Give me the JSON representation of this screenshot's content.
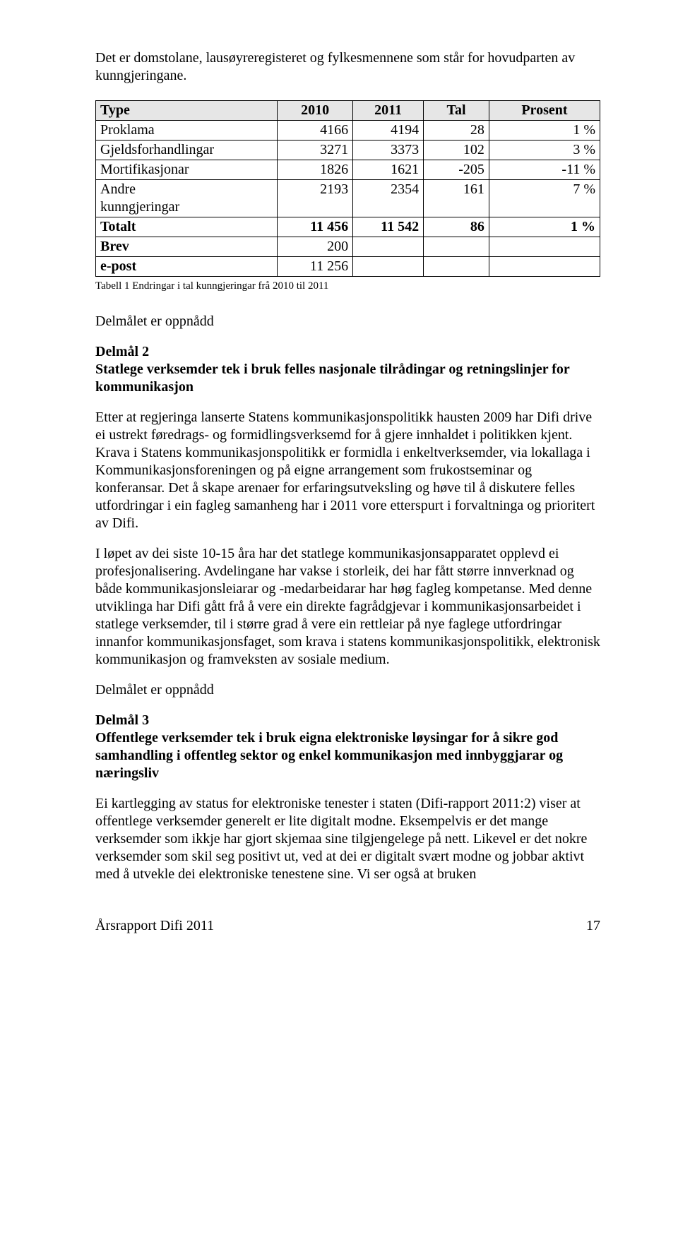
{
  "intro": "Det er domstolane, lausøyreregisteret og fylkesmennene som står for hovudparten av kunngjeringane.",
  "table": {
    "headers": [
      "Type",
      "2010",
      "2011",
      "Tal",
      "Prosent"
    ],
    "rows": [
      {
        "label": "Proklama",
        "y2010": "4166",
        "y2011": "4194",
        "tal": "28",
        "prosent": "1 %",
        "label_bold": false
      },
      {
        "label": "Gjeldsforhandlingar",
        "y2010": "3271",
        "y2011": "3373",
        "tal": "102",
        "prosent": "3 %",
        "label_bold": false
      },
      {
        "label": "Mortifikasjonar",
        "y2010": "1826",
        "y2011": "1621",
        "tal": "-205",
        "prosent": "-11 %",
        "label_bold": false
      },
      {
        "label": "Andre kunngjeringar",
        "y2010": "2193",
        "y2011": "2354",
        "tal": "161",
        "prosent": "7 %",
        "label_bold": false,
        "label_two_lines": true
      },
      {
        "label": "Totalt",
        "y2010": "11 456",
        "y2011": "11 542",
        "tal": "86",
        "prosent": "1 %",
        "label_bold": true,
        "row_bold": true
      },
      {
        "label": "Brev",
        "y2010": "200",
        "y2011": "",
        "tal": "",
        "prosent": "",
        "label_bold": true
      },
      {
        "label": "e-post",
        "y2010": "11 256",
        "y2011": "",
        "tal": "",
        "prosent": "",
        "label_bold": true
      }
    ],
    "col_widths": [
      "36%",
      "15%",
      "14%",
      "13%",
      "22%"
    ]
  },
  "table_caption": "Tabell 1 Endringar i tal kunngjeringar frå 2010 til 2011",
  "delmal1_achieved": "Delmålet er oppnådd",
  "delmal2": {
    "title": "Delmål 2",
    "subtitle": "Statlege verksemder tek i bruk felles nasjonale tilrådingar og retningslinjer for kommunikasjon",
    "p1": "Etter at regjeringa lanserte Statens kommunikasjonspolitikk hausten 2009 har Difi drive ei ustrekt føredrags- og formidlingsverksemd for å gjere innhaldet i politikken kjent. Krava i Statens kommunikasjonspolitikk er formidla i enkeltverksemder, via lokallaga i Kommunikasjonsforeningen og på eigne arrangement som frukostseminar og konferansar. Det å skape arenaer for erfaringsutveksling og høve til å diskutere felles utfordringar i ein fagleg samanheng har i 2011 vore etterspurt i forvaltninga og prioritert av Difi.",
    "p2": "I løpet av dei siste 10-15 åra har det statlege kommunikasjonsapparatet opplevd ei profesjonalisering. Avdelingane har vakse i storleik, dei har fått større innverknad og både kommunikasjonsleiarar og -medarbeidarar har høg fagleg kompetanse. Med denne utviklinga har Difi gått frå å vere ein direkte fagrådgjevar i kommunikasjonsarbeidet i statlege verksemder, til i større grad å vere ein rettleiar på nye faglege utfordringar innanfor kommunikasjonsfaget, som krava i statens kommunikasjonspolitikk, elektronisk kommunikasjon og framveksten av sosiale medium."
  },
  "delmal2_achieved": "Delmålet er oppnådd",
  "delmal3": {
    "title": "Delmål 3",
    "subtitle": "Offentlege verksemder tek i bruk eigna elektroniske løysingar for å sikre god samhandling i offentleg sektor og enkel kommunikasjon med innbyggjarar og næringsliv",
    "p1": "Ei kartlegging av status for elektroniske tenester i staten (Difi-rapport 2011:2) viser at offentlege verksemder generelt er lite digitalt modne. Eksempelvis er det mange verksemder som ikkje har gjort skjemaa sine tilgjengelege på nett. Likevel er det nokre verksemder som skil seg positivt ut, ved at dei er digitalt svært modne og jobbar aktivt med å utvekle dei elektroniske tenestene sine. Vi ser også at bruken"
  },
  "footer": {
    "left": "Årsrapport Difi 2011",
    "page": "17"
  }
}
